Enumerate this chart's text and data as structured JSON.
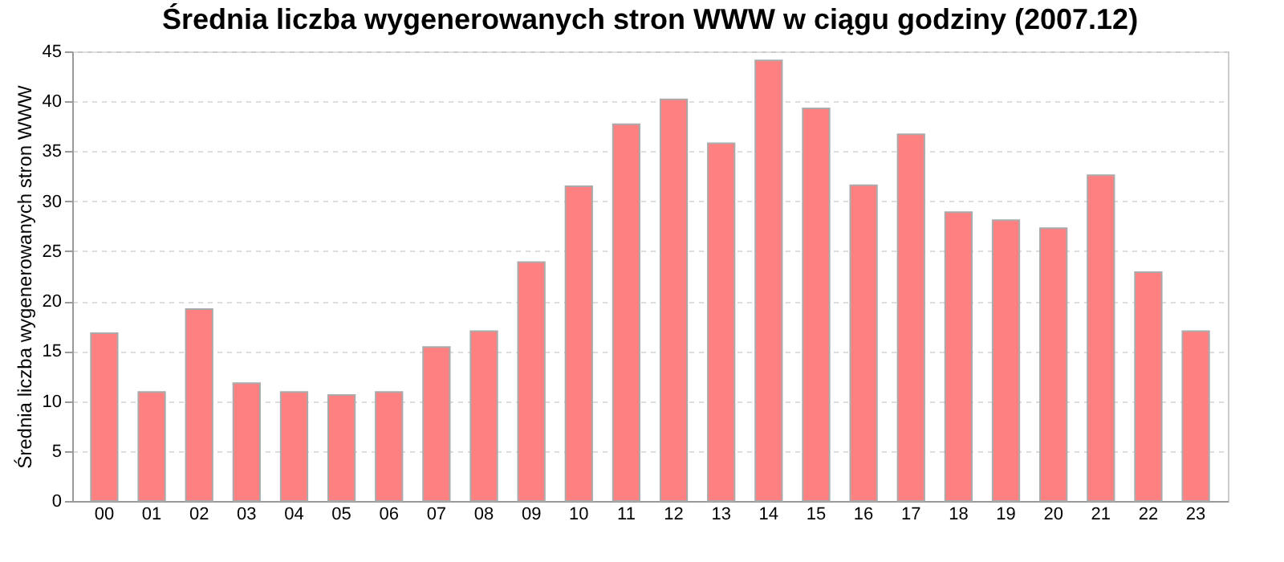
{
  "chart_data": {
    "type": "bar",
    "title": "Średnia liczba wygenerowanych stron WWW w ciągu godziny (2007.12)",
    "ylabel": "Średnia liczba wygenerowanych stron WWW",
    "categories": [
      "00",
      "01",
      "02",
      "03",
      "04",
      "05",
      "06",
      "07",
      "08",
      "09",
      "10",
      "11",
      "12",
      "13",
      "14",
      "15",
      "16",
      "17",
      "18",
      "19",
      "20",
      "21",
      "22",
      "23"
    ],
    "values": [
      16.8,
      10.9,
      19.2,
      11.8,
      10.9,
      10.6,
      10.9,
      15.4,
      17.0,
      23.9,
      31.5,
      37.7,
      40.2,
      35.8,
      44.1,
      39.3,
      31.6,
      36.7,
      28.9,
      28.1,
      27.3,
      32.6,
      22.9,
      17.0
    ],
    "color": "#ff8080",
    "ylim": [
      0,
      45
    ],
    "yticks": [
      0,
      5,
      10,
      15,
      20,
      25,
      30,
      35,
      40,
      45
    ],
    "grid": "y"
  }
}
